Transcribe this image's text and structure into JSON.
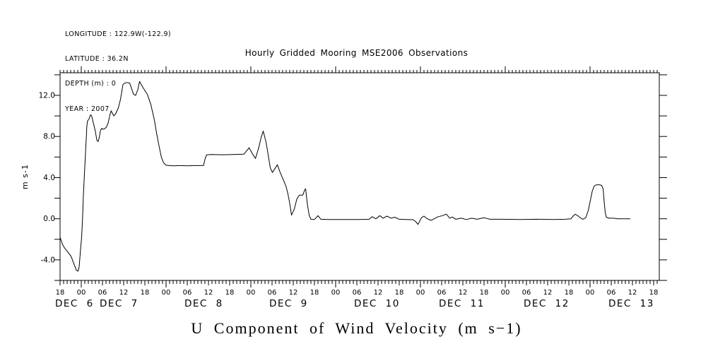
{
  "header": {
    "info_lines": [
      "LONGITUDE : 122.9W(-122.9)",
      "LATITUDE : 36.2N",
      "DEPTH (m) : 0",
      "YEAR : 2007"
    ],
    "title": "Hourly Gridded Mooring MSE2006 Observations"
  },
  "footer": {
    "caption": "U Component of Wind Velocity (m s−1)"
  },
  "chart_data": {
    "type": "line",
    "title": "Hourly Gridded Mooring MSE2006 Observations",
    "xlabel": "",
    "ylabel": "m s-1",
    "x_origin": "2007 DEC 6 18:00",
    "x_unit": "hours since origin",
    "xlim_hours": [
      0,
      169.6
    ],
    "ylim": [
      -6,
      14.2
    ],
    "grid": false,
    "line_color": "#000000",
    "y_ticks_labeled": [
      -4,
      0,
      4,
      8,
      12
    ],
    "y_tick_minor_step": 2,
    "x_hour_label_step": 6,
    "hour_labels": [
      "18",
      "00",
      "06",
      "12",
      "18",
      "00",
      "06",
      "12",
      "18",
      "00",
      "06",
      "12",
      "18",
      "00",
      "06",
      "12",
      "18",
      "00",
      "06",
      "12",
      "18",
      "00",
      "06",
      "12",
      "18",
      "00",
      "06",
      "12",
      "18"
    ],
    "date_labels": [
      "DEC 6",
      "DEC 7",
      "DEC 8",
      "DEC 9",
      "DEC 10",
      "DEC 11",
      "DEC 12",
      "DEC 13"
    ],
    "series": [
      {
        "name": "U wind component",
        "points": [
          [
            0,
            -1.8
          ],
          [
            0.7,
            -2.5
          ],
          [
            1.3,
            -2.85
          ],
          [
            2.1,
            -3.2
          ],
          [
            3.1,
            -3.65
          ],
          [
            3.5,
            -4.0
          ],
          [
            4.1,
            -4.55
          ],
          [
            4.6,
            -5.0
          ],
          [
            5.1,
            -5.1
          ],
          [
            5.4,
            -4.7
          ],
          [
            5.7,
            -3.4
          ],
          [
            6.1,
            -1.8
          ],
          [
            6.3,
            -0.45
          ],
          [
            6.45,
            0.9
          ],
          [
            6.6,
            2.3
          ],
          [
            6.75,
            3.4
          ],
          [
            6.95,
            4.8
          ],
          [
            7.1,
            5.7
          ],
          [
            7.3,
            7.1
          ],
          [
            7.45,
            8.1
          ],
          [
            7.55,
            8.9
          ],
          [
            7.75,
            9.5
          ],
          [
            7.95,
            9.6
          ],
          [
            8.2,
            9.7
          ],
          [
            8.6,
            10.1
          ],
          [
            8.9,
            10.05
          ],
          [
            9.4,
            9.35
          ],
          [
            9.95,
            8.55
          ],
          [
            10.4,
            7.65
          ],
          [
            10.75,
            7.5
          ],
          [
            11.1,
            7.9
          ],
          [
            11.4,
            8.55
          ],
          [
            11.75,
            8.8
          ],
          [
            12.1,
            8.7
          ],
          [
            12.6,
            8.75
          ],
          [
            13.1,
            8.9
          ],
          [
            13.6,
            9.3
          ],
          [
            14.1,
            10.1
          ],
          [
            14.45,
            10.5
          ],
          [
            15.2,
            10.0
          ],
          [
            15.8,
            10.25
          ],
          [
            16.5,
            10.8
          ],
          [
            17.1,
            11.6
          ],
          [
            17.8,
            13.05
          ],
          [
            18.3,
            13.2
          ],
          [
            19.0,
            13.25
          ],
          [
            19.7,
            13.2
          ],
          [
            20.8,
            12.1
          ],
          [
            21.4,
            12.0
          ],
          [
            22.0,
            12.55
          ],
          [
            22.5,
            13.35
          ],
          [
            23.4,
            12.8
          ],
          [
            24.7,
            12.1
          ],
          [
            25.7,
            11.1
          ],
          [
            26.7,
            9.6
          ],
          [
            27.3,
            8.35
          ],
          [
            28.0,
            7.1
          ],
          [
            28.7,
            5.95
          ],
          [
            29.3,
            5.45
          ],
          [
            30.0,
            5.2
          ],
          [
            32,
            5.15
          ],
          [
            34,
            5.17
          ],
          [
            36,
            5.15
          ],
          [
            38,
            5.17
          ],
          [
            40.6,
            5.17
          ],
          [
            41.1,
            5.9
          ],
          [
            41.5,
            6.22
          ],
          [
            43,
            6.25
          ],
          [
            46,
            6.22
          ],
          [
            49,
            6.25
          ],
          [
            52,
            6.28
          ],
          [
            52.8,
            6.6
          ],
          [
            53.5,
            6.9
          ],
          [
            54.4,
            6.35
          ],
          [
            55.3,
            5.86
          ],
          [
            56.3,
            7.0
          ],
          [
            56.9,
            7.9
          ],
          [
            57.5,
            8.53
          ],
          [
            58.3,
            7.45
          ],
          [
            59.0,
            6.0
          ],
          [
            59.5,
            4.95
          ],
          [
            60.1,
            4.5
          ],
          [
            61.5,
            5.25
          ],
          [
            62.3,
            4.5
          ],
          [
            63.3,
            3.7
          ],
          [
            64.0,
            3.1
          ],
          [
            64.5,
            2.4
          ],
          [
            65.1,
            1.3
          ],
          [
            65.5,
            0.35
          ],
          [
            66.3,
            0.95
          ],
          [
            67.0,
            1.9
          ],
          [
            67.4,
            2.15
          ],
          [
            67.8,
            2.3
          ],
          [
            68.7,
            2.3
          ],
          [
            69.3,
            2.85
          ],
          [
            69.5,
            2.9
          ],
          [
            70.0,
            1.4
          ],
          [
            70.5,
            0.35
          ],
          [
            71.0,
            -0.05
          ],
          [
            72.0,
            -0.08
          ],
          [
            73.0,
            0.3
          ],
          [
            73.8,
            -0.05
          ],
          [
            76,
            -0.08
          ],
          [
            80,
            -0.08
          ],
          [
            84,
            -0.08
          ],
          [
            87.5,
            -0.05
          ],
          [
            88.3,
            0.2
          ],
          [
            89.4,
            0.0
          ],
          [
            90.5,
            0.3
          ],
          [
            91.4,
            0.05
          ],
          [
            92.5,
            0.25
          ],
          [
            93.7,
            0.05
          ],
          [
            94.7,
            0.15
          ],
          [
            96,
            -0.05
          ],
          [
            98,
            -0.08
          ],
          [
            100,
            -0.1
          ],
          [
            100.7,
            -0.3
          ],
          [
            101.3,
            -0.55
          ],
          [
            102.3,
            0.1
          ],
          [
            103.0,
            0.25
          ],
          [
            103.9,
            0.0
          ],
          [
            105.0,
            -0.15
          ],
          [
            105.9,
            0.0
          ],
          [
            107.0,
            0.2
          ],
          [
            108.3,
            0.3
          ],
          [
            109.3,
            0.45
          ],
          [
            110.3,
            0.05
          ],
          [
            111.0,
            0.17
          ],
          [
            112.0,
            -0.05
          ],
          [
            113.5,
            0.05
          ],
          [
            115.0,
            -0.08
          ],
          [
            116.5,
            0.05
          ],
          [
            118.0,
            -0.05
          ],
          [
            120.0,
            0.1
          ],
          [
            121.6,
            -0.05
          ],
          [
            125,
            -0.05
          ],
          [
            130,
            -0.08
          ],
          [
            135,
            -0.05
          ],
          [
            140,
            -0.08
          ],
          [
            143,
            -0.05
          ],
          [
            144.6,
            0.0
          ],
          [
            145.2,
            0.25
          ],
          [
            145.8,
            0.44
          ],
          [
            146.5,
            0.3
          ],
          [
            147.2,
            0.1
          ],
          [
            148.0,
            -0.05
          ],
          [
            148.8,
            0.1
          ],
          [
            149.5,
            0.8
          ],
          [
            150.0,
            1.63
          ],
          [
            150.6,
            2.65
          ],
          [
            151.2,
            3.2
          ],
          [
            151.9,
            3.3
          ],
          [
            152.6,
            3.3
          ],
          [
            153.3,
            3.25
          ],
          [
            153.7,
            2.89
          ],
          [
            154.0,
            1.63
          ],
          [
            154.3,
            0.6
          ],
          [
            154.6,
            0.15
          ],
          [
            155.3,
            0.05
          ],
          [
            156.5,
            0.05
          ],
          [
            158,
            0.0
          ],
          [
            160,
            0.0
          ],
          [
            161.4,
            0.0
          ]
        ]
      }
    ]
  }
}
